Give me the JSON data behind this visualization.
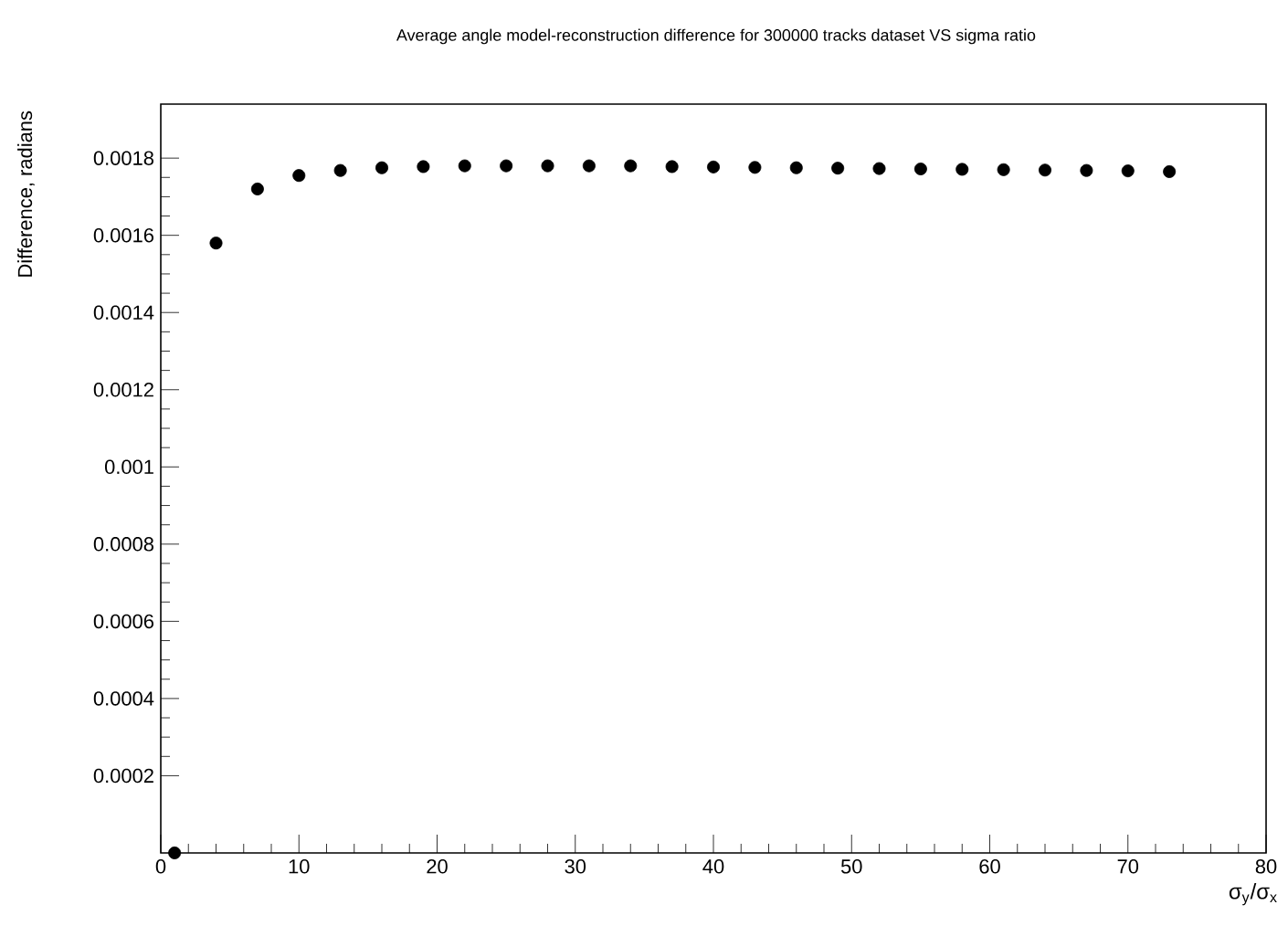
{
  "chart_data": {
    "type": "scatter",
    "title": "Average angle model-reconstruction difference for 300000 tracks dataset VS sigma ratio",
    "xlabel": "σ$_{y}$/σ$_{x}$",
    "ylabel": "Difference, radians",
    "x": [
      1,
      4,
      7,
      10,
      13,
      16,
      19,
      22,
      25,
      28,
      31,
      34,
      37,
      40,
      43,
      46,
      49,
      52,
      55,
      58,
      61,
      64,
      67,
      70,
      73
    ],
    "values": [
      0,
      0.00158,
      0.00172,
      0.001755,
      0.001768,
      0.001775,
      0.001778,
      0.00178,
      0.00178,
      0.00178,
      0.00178,
      0.00178,
      0.001778,
      0.001777,
      0.001776,
      0.001775,
      0.001774,
      0.001773,
      0.001772,
      0.001771,
      0.00177,
      0.001769,
      0.001768,
      0.001767,
      0.001765
    ],
    "color": "#000000",
    "marker": "circle",
    "xlim": [
      0,
      80
    ],
    "xticks": [
      0,
      10,
      20,
      30,
      40,
      50,
      60,
      70,
      80
    ],
    "ylim": [
      0,
      0.00194
    ],
    "yticks": [
      0.0002,
      0.0004,
      0.0006,
      0.0008,
      0.001,
      0.0012,
      0.0014,
      0.0016,
      0.0018
    ]
  }
}
